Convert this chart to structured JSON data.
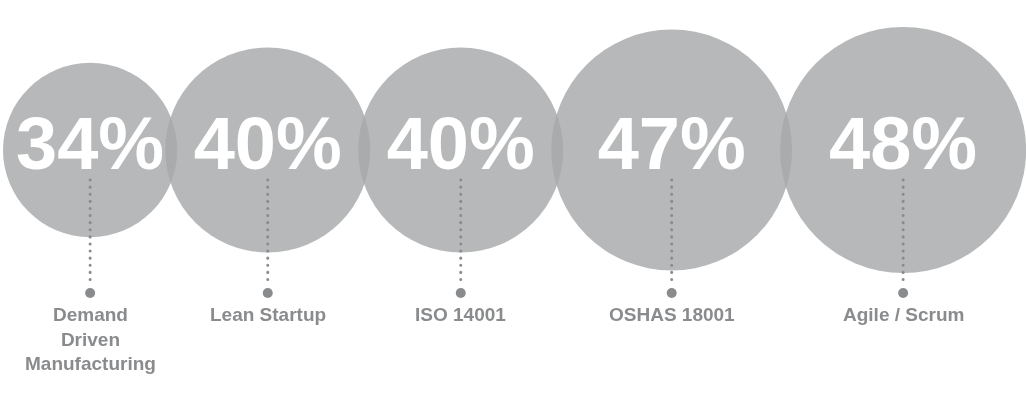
{
  "chart_data": {
    "type": "other",
    "categories": [
      "Demand Driven Manufacturing",
      "Lean Startup",
      "ISO 14001",
      "OSHAS 18001",
      "Agile / Scrum"
    ],
    "values": [
      34,
      40,
      40,
      47,
      48
    ],
    "value_labels": [
      "34%",
      "40%",
      "40%",
      "47%",
      "48%"
    ],
    "color": "#a7a8aa"
  }
}
